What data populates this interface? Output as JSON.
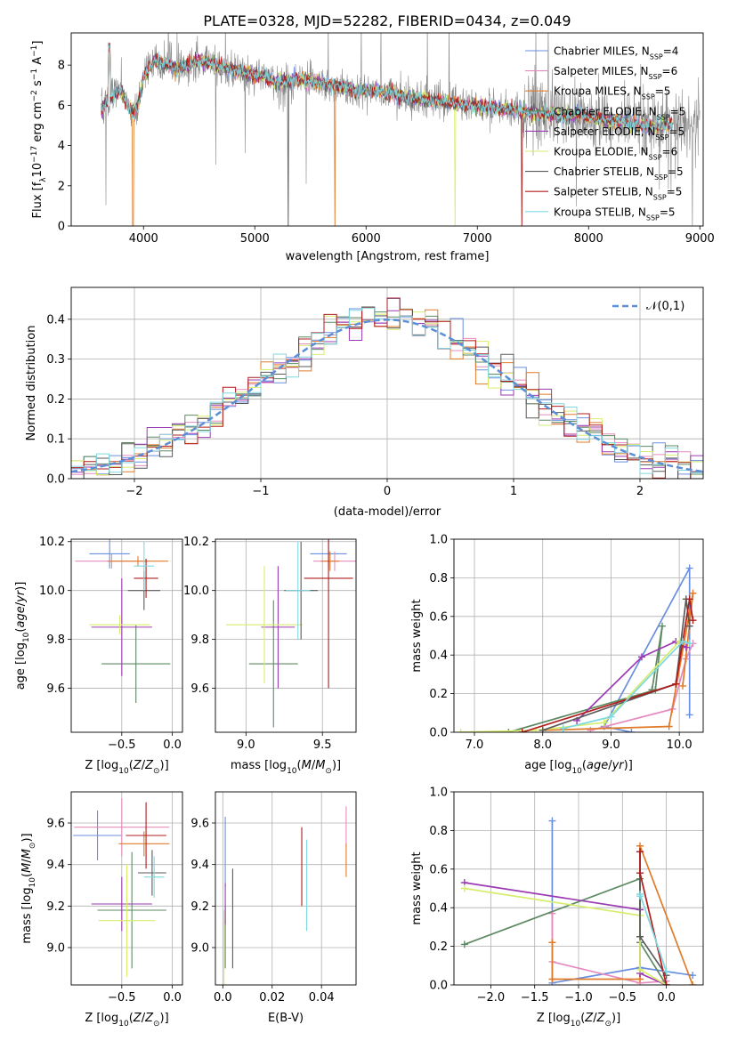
{
  "title": "PLATE=0328, MJD=52282, FIBERID=0434, z=0.049",
  "colors": {
    "Chabrier MILES": "#6a8fe0",
    "Salpeter MILES": "#e58bbf",
    "Kroupa MILES": "#e07b2a",
    "Chabrier ELODIE": "#5e8a63",
    "Salpeter ELODIE": "#9b3bb3",
    "Kroupa ELODIE": "#d6ee6e",
    "Chabrier STELIB": "#5a5a5a",
    "Salpeter STELIB": "#b01c1c",
    "Kroupa STELIB": "#7fd7e0"
  },
  "chart_data": [
    {
      "id": "spectrum",
      "type": "line",
      "xlabel": "wavelength [Angstrom, rest frame]",
      "ylabel": "Flux [f_λ10⁻¹⁷ erg cm⁻² s⁻¹ A⁻¹]",
      "xlim": [
        3350,
        9030
      ],
      "ylim": [
        0,
        9.6
      ],
      "xticks": [
        4000,
        5000,
        6000,
        7000,
        8000,
        9000
      ],
      "yticks": [
        0,
        2,
        4,
        6,
        8
      ],
      "grid": false,
      "legend_position": "top-right",
      "legend": [
        {
          "name": "Chabrier MILES",
          "sub": "SSP",
          "n": "=4"
        },
        {
          "name": "Salpeter MILES",
          "sub": "SSP",
          "n": "=6"
        },
        {
          "name": "Kroupa MILES",
          "sub": "SSP",
          "n": "=5"
        },
        {
          "name": "Chabrier ELODIE",
          "sub": "SSP",
          "n": "=5"
        },
        {
          "name": "Salpeter ELODIE",
          "sub": "SSP",
          "n": "=5"
        },
        {
          "name": "Kroupa ELODIE",
          "sub": "SSP",
          "n": "=6"
        },
        {
          "name": "Chabrier STELIB",
          "sub": "SSP",
          "n": "=5"
        },
        {
          "name": "Salpeter STELIB",
          "sub": "SSP",
          "n": "=5"
        },
        {
          "name": "Kroupa STELIB",
          "sub": "SSP",
          "n": "=5"
        }
      ],
      "data_range": [
        3620,
        9000
      ],
      "continuum": [
        [
          3620,
          5.8
        ],
        [
          3700,
          6.4
        ],
        [
          3800,
          6.7
        ],
        [
          3900,
          5.6
        ],
        [
          3950,
          5.9
        ],
        [
          4000,
          7.4
        ],
        [
          4100,
          8.2
        ],
        [
          4200,
          8.1
        ],
        [
          4300,
          7.8
        ],
        [
          4400,
          8.0
        ],
        [
          4500,
          8.2
        ],
        [
          4600,
          8.1
        ],
        [
          4700,
          7.9
        ],
        [
          4800,
          7.8
        ],
        [
          4900,
          7.6
        ],
        [
          5000,
          7.5
        ],
        [
          5100,
          7.4
        ],
        [
          5200,
          7.1
        ],
        [
          5300,
          7.2
        ],
        [
          5400,
          7.3
        ],
        [
          5500,
          7.2
        ],
        [
          5600,
          7.1
        ],
        [
          5700,
          7.0
        ],
        [
          5800,
          6.9
        ],
        [
          5900,
          6.7
        ],
        [
          6000,
          6.8
        ],
        [
          6100,
          6.7
        ],
        [
          6200,
          6.6
        ],
        [
          6300,
          6.5
        ],
        [
          6400,
          6.4
        ],
        [
          6500,
          6.3
        ],
        [
          6600,
          6.2
        ],
        [
          6700,
          6.2
        ],
        [
          6800,
          6.1
        ],
        [
          6900,
          6.0
        ],
        [
          7000,
          6.0
        ],
        [
          7100,
          5.9
        ],
        [
          7200,
          5.8
        ],
        [
          7300,
          5.8
        ],
        [
          7400,
          5.7
        ],
        [
          7500,
          5.6
        ],
        [
          7600,
          5.6
        ],
        [
          7700,
          5.5
        ],
        [
          7800,
          5.4
        ],
        [
          7900,
          5.6
        ],
        [
          8000,
          5.4
        ],
        [
          8100,
          5.3
        ],
        [
          8200,
          5.2
        ],
        [
          8300,
          5.2
        ],
        [
          8400,
          5.1
        ],
        [
          8500,
          5.0
        ],
        [
          8600,
          4.9
        ],
        [
          8700,
          5.0
        ],
        [
          8750,
          5.1
        ]
      ]
    },
    {
      "id": "residuals",
      "type": "bar",
      "xlabel": "(data-model)/error",
      "ylabel": "Normed distribution",
      "xlim": [
        -2.5,
        2.5
      ],
      "ylim": [
        0,
        0.48
      ],
      "xticks": [
        -2,
        -1,
        0,
        1,
        2
      ],
      "yticks": [
        0,
        0.1,
        0.2,
        0.3,
        0.4
      ],
      "grid": true,
      "bin_width": 0.1,
      "legend_position": "top-right",
      "legend_label": "𝒩(0,1)",
      "normal_curve": {
        "mu": 0,
        "sigma": 1
      }
    },
    {
      "id": "age-vs-Z",
      "type": "scatter",
      "xlabel_pre": "Z [log",
      "xlabel_sub": "10",
      "xlabel_post": "(Z/Z",
      "xlabel_sun": "⊙",
      "xlabel_end": ")]",
      "ylabel": "age  [log10(age/yr)]",
      "xlim": [
        -1.0,
        0.1
      ],
      "ylim": [
        9.42,
        10.21
      ],
      "xticks": [
        -0.5,
        0.0
      ],
      "yticks": [
        9.6,
        9.8,
        10.0,
        10.2
      ],
      "grid": true,
      "points": [
        {
          "model": "Chabrier MILES",
          "x": -0.62,
          "xerr": 0.2,
          "y": 10.15,
          "yerr": 0.06
        },
        {
          "model": "Salpeter MILES",
          "x": -0.6,
          "xerr": 0.36,
          "y": 10.12,
          "yerr": 0.03
        },
        {
          "model": "Kroupa MILES",
          "x": -0.34,
          "xerr": 0.3,
          "y": 10.12,
          "yerr": 0.02
        },
        {
          "model": "Chabrier ELODIE",
          "x": -0.36,
          "xerr": 0.34,
          "y": 9.7,
          "yerr": 0.16
        },
        {
          "model": "Salpeter ELODIE",
          "x": -0.5,
          "xerr": 0.3,
          "y": 9.85,
          "yerr": 0.2
        },
        {
          "model": "Kroupa ELODIE",
          "x": -0.52,
          "xerr": 0.3,
          "y": 9.86,
          "yerr": 0.04
        },
        {
          "model": "Chabrier STELIB",
          "x": -0.28,
          "xerr": 0.16,
          "y": 10.0,
          "yerr": 0.08
        },
        {
          "model": "Salpeter STELIB",
          "x": -0.26,
          "xerr": 0.12,
          "y": 10.05,
          "yerr": 0.08
        },
        {
          "model": "Kroupa STELIB",
          "x": -0.28,
          "xerr": 0.1,
          "y": 10.1,
          "yerr": 0.1
        }
      ]
    },
    {
      "id": "age-vs-mass",
      "type": "scatter",
      "xlabel": "mass [log10(M/M⊙)]",
      "xlim": [
        8.8,
        9.72
      ],
      "ylim": [
        9.42,
        10.21
      ],
      "xticks": [
        9.0,
        9.5
      ],
      "yticks": [
        9.6,
        9.8,
        10.0,
        10.2
      ],
      "grid": true,
      "points": [
        {
          "model": "Chabrier MILES",
          "x": 9.54,
          "xerr": 0.12,
          "y": 10.15,
          "yerr": 0.06
        },
        {
          "model": "Salpeter MILES",
          "x": 9.58,
          "xerr": 0.14,
          "y": 10.12,
          "yerr": 0.04
        },
        {
          "model": "Kroupa MILES",
          "x": 9.55,
          "xerr": 0.06,
          "y": 10.12,
          "yerr": 0.04
        },
        {
          "model": "Chabrier ELODIE",
          "x": 9.18,
          "xerr": 0.16,
          "y": 9.7,
          "yerr": 0.26
        },
        {
          "model": "Salpeter ELODIE",
          "x": 9.21,
          "xerr": 0.11,
          "y": 9.85,
          "yerr": 0.25
        },
        {
          "model": "Kroupa ELODIE",
          "x": 9.12,
          "xerr": 0.25,
          "y": 9.86,
          "yerr": 0.24
        },
        {
          "model": "Chabrier STELIB",
          "x": 9.36,
          "xerr": 0.11,
          "y": 10.0,
          "yerr": 0.2
        },
        {
          "model": "Salpeter STELIB",
          "x": 9.54,
          "xerr": 0.16,
          "y": 10.05,
          "yerr": 0.45
        },
        {
          "model": "Kroupa STELIB",
          "x": 9.34,
          "xerr": 0.08,
          "y": 10.0,
          "yerr": 0.2
        }
      ]
    },
    {
      "id": "massweight-vs-age",
      "type": "line",
      "xlabel": "age  [log10(age/yr)]",
      "ylabel": "mass weight",
      "xlim": [
        6.7,
        10.35
      ],
      "ylim": [
        0,
        1.0
      ],
      "xticks": [
        7,
        8,
        9,
        10
      ],
      "yticks": [
        0,
        0.2,
        0.4,
        0.6,
        0.8,
        1.0
      ],
      "grid": true,
      "series": [
        {
          "model": "Chabrier MILES",
          "points": [
            [
              9.3,
              0.0
            ],
            [
              8.9,
              0.03
            ],
            [
              10.15,
              0.85
            ],
            [
              10.15,
              0.09
            ]
          ]
        },
        {
          "model": "Salpeter MILES",
          "points": [
            [
              8.7,
              0.01
            ],
            [
              9.9,
              0.12
            ],
            [
              10.1,
              0.38
            ],
            [
              10.2,
              0.46
            ]
          ]
        },
        {
          "model": "Kroupa MILES",
          "points": [
            [
              8.0,
              0.01
            ],
            [
              9.85,
              0.03
            ],
            [
              10.2,
              0.72
            ],
            [
              10.05,
              0.24
            ]
          ]
        },
        {
          "model": "Chabrier ELODIE",
          "points": [
            [
              7.5,
              0.0
            ],
            [
              9.65,
              0.22
            ],
            [
              9.75,
              0.55
            ],
            [
              9.6,
              0.22
            ]
          ]
        },
        {
          "model": "Salpeter ELODIE",
          "points": [
            [
              8.5,
              0.06
            ],
            [
              9.45,
              0.39
            ],
            [
              9.95,
              0.47
            ],
            [
              10.1,
              0.44
            ]
          ]
        },
        {
          "model": "Kroupa ELODIE",
          "points": [
            [
              6.8,
              0.0
            ],
            [
              7.9,
              0.01
            ],
            [
              8.9,
              0.05
            ],
            [
              10.0,
              0.47
            ]
          ]
        },
        {
          "model": "Chabrier STELIB",
          "points": [
            [
              8.0,
              0.01
            ],
            [
              9.95,
              0.25
            ],
            [
              10.1,
              0.69
            ],
            [
              10.15,
              0.55
            ]
          ]
        },
        {
          "model": "Salpeter STELIB",
          "points": [
            [
              7.7,
              0.0
            ],
            [
              9.95,
              0.25
            ],
            [
              10.15,
              0.69
            ],
            [
              10.2,
              0.58
            ]
          ]
        },
        {
          "model": "Kroupa STELIB",
          "points": [
            [
              8.3,
              0.02
            ],
            [
              9.0,
              0.08
            ],
            [
              10.05,
              0.47
            ],
            [
              10.15,
              0.46
            ]
          ]
        }
      ]
    },
    {
      "id": "mass-vs-Z",
      "type": "scatter",
      "xlabel": "Z [log10(Z/Z⊙)]",
      "ylabel": "mass [log10(M/M⊙)]",
      "xlim": [
        -1.0,
        0.1
      ],
      "ylim": [
        8.82,
        9.75
      ],
      "xticks": [
        -0.5,
        0.0
      ],
      "yticks": [
        9.0,
        9.2,
        9.4,
        9.6
      ],
      "grid": true,
      "points": [
        {
          "model": "Chabrier MILES",
          "x": -0.74,
          "xerr": 0.24,
          "y": 9.54,
          "yerr": 0.12
        },
        {
          "model": "Salpeter MILES",
          "x": -0.5,
          "xerr": 0.47,
          "y": 9.58,
          "yerr": 0.14
        },
        {
          "model": "Kroupa MILES",
          "x": -0.28,
          "xerr": 0.25,
          "y": 9.5,
          "yerr": 0.06
        },
        {
          "model": "Chabrier ELODIE",
          "x": -0.4,
          "xerr": 0.34,
          "y": 9.18,
          "yerr": 0.28
        },
        {
          "model": "Salpeter ELODIE",
          "x": -0.5,
          "xerr": 0.3,
          "y": 9.21,
          "yerr": 0.13
        },
        {
          "model": "Kroupa ELODIE",
          "x": -0.45,
          "xerr": 0.28,
          "y": 9.13,
          "yerr": 0.27
        },
        {
          "model": "Chabrier STELIB",
          "x": -0.2,
          "xerr": 0.14,
          "y": 9.36,
          "yerr": 0.11
        },
        {
          "model": "Salpeter STELIB",
          "x": -0.26,
          "xerr": 0.2,
          "y": 9.54,
          "yerr": 0.16
        },
        {
          "model": "Kroupa STELIB",
          "x": -0.18,
          "xerr": 0.1,
          "y": 9.34,
          "yerr": 0.1
        }
      ]
    },
    {
      "id": "mass-vs-EBV",
      "type": "scatter",
      "xlabel": "E(B-V)",
      "xlim": [
        -0.003,
        0.054
      ],
      "ylim": [
        8.82,
        9.75
      ],
      "xticks": [
        0.0,
        0.02,
        0.04
      ],
      "yticks": [
        9.0,
        9.2,
        9.4,
        9.6
      ],
      "grid": true,
      "points": [
        {
          "model": "Chabrier MILES",
          "x": 0.001,
          "xerr": 0.0,
          "y": 9.46,
          "yerr": 0.17
        },
        {
          "model": "Salpeter MILES",
          "x": 0.05,
          "xerr": 0.0,
          "y": 9.58,
          "yerr": 0.1
        },
        {
          "model": "Kroupa MILES",
          "x": 0.05,
          "xerr": 0.0,
          "y": 9.42,
          "yerr": 0.08
        },
        {
          "model": "Chabrier ELODIE",
          "x": 0.001,
          "xerr": 0.0,
          "y": 9.05,
          "yerr": 0.15
        },
        {
          "model": "Salpeter ELODIE",
          "x": 0.001,
          "xerr": 0.0,
          "y": 9.21,
          "yerr": 0.1
        },
        {
          "model": "Kroupa ELODIE",
          "x": 0.0005,
          "xerr": 0.0,
          "y": 9.0,
          "yerr": 0.18
        },
        {
          "model": "Chabrier STELIB",
          "x": 0.004,
          "xerr": 0.0,
          "y": 9.14,
          "yerr": 0.24
        },
        {
          "model": "Salpeter STELIB",
          "x": 0.032,
          "xerr": 0.0,
          "y": 9.39,
          "yerr": 0.19
        },
        {
          "model": "Kroupa STELIB",
          "x": 0.034,
          "xerr": 0.0,
          "y": 9.3,
          "yerr": 0.22
        }
      ]
    },
    {
      "id": "massweight-vs-Z",
      "type": "line",
      "xlabel": "Z [log10(Z/Z⊙)]",
      "ylabel": "mass weight",
      "xlim": [
        -2.42,
        0.42
      ],
      "ylim": [
        0,
        1.0
      ],
      "xticks": [
        -2.0,
        -1.5,
        -1.0,
        -0.5,
        0.0
      ],
      "yticks": [
        0,
        0.2,
        0.4,
        0.6,
        0.8,
        1.0
      ],
      "grid": true,
      "series": [
        {
          "model": "Chabrier MILES",
          "points": [
            [
              -1.3,
              0.85
            ],
            [
              -1.3,
              0.01
            ],
            [
              -0.3,
              0.09
            ],
            [
              0.3,
              0.05
            ]
          ]
        },
        {
          "model": "Salpeter MILES",
          "points": [
            [
              -1.3,
              0.37
            ],
            [
              -1.3,
              0.12
            ],
            [
              -0.3,
              0.01
            ],
            [
              0.0,
              0.02
            ]
          ]
        },
        {
          "model": "Kroupa MILES",
          "points": [
            [
              -1.3,
              0.22
            ],
            [
              -1.3,
              0.03
            ],
            [
              -0.3,
              0.03
            ],
            [
              -0.3,
              0.72
            ],
            [
              0.3,
              0.0
            ]
          ]
        },
        {
          "model": "Chabrier ELODIE",
          "points": [
            [
              -2.3,
              0.21
            ],
            [
              -0.3,
              0.55
            ],
            [
              -0.3,
              0.22
            ],
            [
              0.0,
              0.0
            ]
          ]
        },
        {
          "model": "Salpeter ELODIE",
          "points": [
            [
              -2.3,
              0.53
            ],
            [
              -0.3,
              0.39
            ],
            [
              -0.3,
              0.06
            ],
            [
              0.0,
              0.0
            ]
          ]
        },
        {
          "model": "Kroupa ELODIE",
          "points": [
            [
              -2.3,
              0.5
            ],
            [
              -0.3,
              0.36
            ],
            [
              -0.3,
              0.08
            ],
            [
              0.0,
              0.0
            ]
          ]
        },
        {
          "model": "Chabrier STELIB",
          "points": [
            [
              -0.3,
              0.69
            ],
            [
              -0.3,
              0.25
            ],
            [
              0.0,
              0.05
            ]
          ]
        },
        {
          "model": "Salpeter STELIB",
          "points": [
            [
              -0.3,
              0.69
            ],
            [
              -0.3,
              0.58
            ],
            [
              0.0,
              0.0
            ]
          ]
        },
        {
          "model": "Kroupa STELIB",
          "points": [
            [
              -0.3,
              0.46
            ],
            [
              -0.3,
              0.47
            ],
            [
              0.0,
              0.07
            ]
          ]
        }
      ]
    }
  ]
}
